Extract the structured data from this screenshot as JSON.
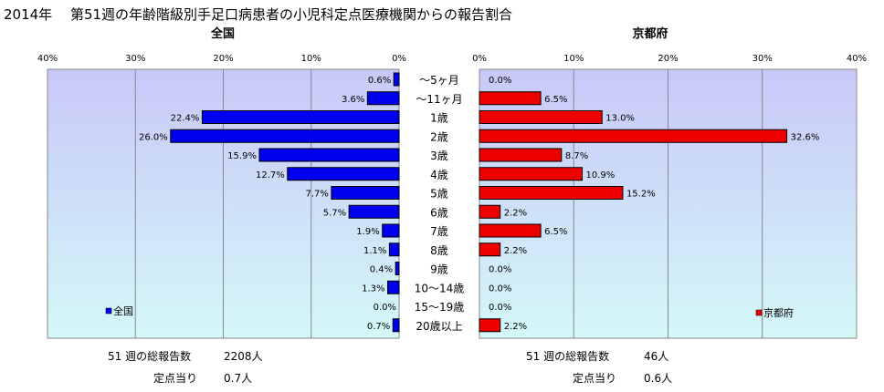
{
  "header": {
    "title": "2014年 　第51週の年齢階級別手足口病患者の小児科定点医療機関からの報告割合"
  },
  "colors": {
    "panel_bg_top": "#c8c8f8",
    "panel_bg_bottom": "#d4f8f8",
    "nation_bar": "#0000ee",
    "kyoto_bar": "#ee0000",
    "grid": "#888888",
    "bar_border": "#000000"
  },
  "chart_data": [
    {
      "type": "bar",
      "orientation": "horizontal-reversed",
      "title": "全国",
      "categories": [
        "～5ヶ月",
        "～11ヶ月",
        "1歳",
        "2歳",
        "3歳",
        "4歳",
        "5歳",
        "6歳",
        "7歳",
        "8歳",
        "9歳",
        "10～14歳",
        "15～19歳",
        "20歳以上"
      ],
      "series": [
        {
          "name": "全国",
          "values": [
            0.6,
            3.6,
            22.4,
            26.0,
            15.9,
            12.7,
            7.7,
            5.7,
            1.9,
            1.1,
            0.4,
            1.3,
            0.0,
            0.7
          ]
        }
      ],
      "value_labels": [
        "0.6%",
        "3.6%",
        "22.4%",
        "26.0%",
        "15.9%",
        "12.7%",
        "7.7%",
        "5.7%",
        "1.9%",
        "1.1%",
        "0.4%",
        "1.3%",
        "0.0%",
        "0.7%"
      ],
      "xlim": [
        0,
        40
      ],
      "ticks": [
        "40%",
        "30%",
        "20%",
        "10%",
        "0%"
      ],
      "grid": true,
      "legend": "bottom-left"
    },
    {
      "type": "bar",
      "orientation": "horizontal",
      "title": "京都府",
      "categories": [
        "～5ヶ月",
        "～11ヶ月",
        "1歳",
        "2歳",
        "3歳",
        "4歳",
        "5歳",
        "6歳",
        "7歳",
        "8歳",
        "9歳",
        "10～14歳",
        "15～19歳",
        "20歳以上"
      ],
      "series": [
        {
          "name": "京都府",
          "values": [
            0.0,
            6.5,
            13.0,
            32.6,
            8.7,
            10.9,
            15.2,
            2.2,
            6.5,
            2.2,
            0.0,
            0.0,
            0.0,
            2.2
          ]
        }
      ],
      "value_labels": [
        "0.0%",
        "6.5%",
        "13.0%",
        "32.6%",
        "8.7%",
        "10.9%",
        "15.2%",
        "2.2%",
        "6.5%",
        "2.2%",
        "0.0%",
        "0.0%",
        "0.0%",
        "2.2%"
      ],
      "xlim": [
        0,
        40
      ],
      "ticks": [
        "0%",
        "10%",
        "20%",
        "30%",
        "40%"
      ],
      "grid": true,
      "legend": "bottom-right"
    }
  ],
  "footer": {
    "nation": {
      "total_label": "51 週の総報告数",
      "total_value": "2208人",
      "per_label": "定点当り",
      "per_value": "0.7人"
    },
    "kyoto": {
      "total_label": "51 週の総報告数",
      "total_value": "46人",
      "per_label": "定点当り",
      "per_value": "0.6人"
    }
  }
}
